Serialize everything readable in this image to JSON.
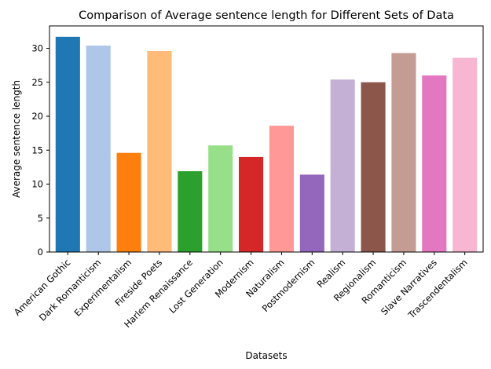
{
  "chart_data": {
    "type": "bar",
    "title": "Comparison of Average sentence length for Different Sets of Data",
    "xlabel": "Datasets",
    "ylabel": "Average sentence length",
    "ylim": [
      0,
      33.3
    ],
    "yticks": [
      0,
      5,
      10,
      15,
      20,
      25,
      30
    ],
    "grid": false,
    "categories": [
      "American Gothic",
      "Dark Romanticism",
      "Experimentalism",
      "Fireside Poets",
      "Harlem Renaissance",
      "Lost Generation",
      "Modernism",
      "Naturalism",
      "Postmodernism",
      "Realism",
      "Regionalism",
      "Romanticism",
      "Slave Narratives",
      "Trascendentalism"
    ],
    "values": [
      31.7,
      30.4,
      14.6,
      29.6,
      11.9,
      15.7,
      14.0,
      18.6,
      11.4,
      25.4,
      25.0,
      29.3,
      26.0,
      28.6
    ],
    "colors": [
      "#1f77b4",
      "#aec7e8",
      "#ff7f0e",
      "#ffbb78",
      "#2ca02c",
      "#98df8a",
      "#d62728",
      "#ff9896",
      "#9467bd",
      "#c5b0d5",
      "#8c564b",
      "#c49c94",
      "#e377c2",
      "#f7b6d2"
    ]
  }
}
